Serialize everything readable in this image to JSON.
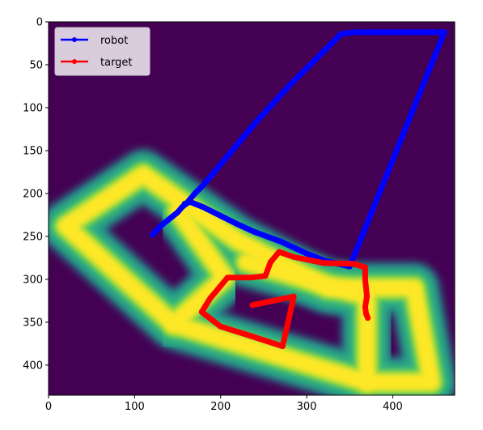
{
  "chart_data": {
    "type": "line",
    "background": "heatmap",
    "colormap": "viridis",
    "image_extent": {
      "x": [
        0,
        472
      ],
      "y": [
        0,
        435
      ]
    },
    "xlim": [
      0,
      472
    ],
    "ylim": [
      435,
      0
    ],
    "y_inverted": true,
    "grid": false,
    "legend_position": "upper-left",
    "xticks": [
      0,
      100,
      200,
      300,
      400
    ],
    "yticks": [
      0,
      50,
      100,
      150,
      200,
      250,
      300,
      350,
      400
    ],
    "xtick_labels": [
      "0",
      "100",
      "200",
      "300",
      "400"
    ],
    "ytick_labels": [
      "0",
      "50",
      "100",
      "150",
      "200",
      "250",
      "300",
      "350",
      "400"
    ],
    "heatmap_corridors": [
      [
        [
          110,
          178
        ],
        [
          20,
          238
        ],
        [
          145,
          352
        ],
        [
          370,
          420
        ],
        [
          445,
          420
        ],
        [
          425,
          310
        ],
        [
          325,
          310
        ],
        [
          220,
          255
        ],
        [
          110,
          178
        ]
      ],
      [
        [
          150,
          220
        ],
        [
          205,
          298
        ],
        [
          145,
          352
        ]
      ],
      [
        [
          230,
          280
        ],
        [
          370,
          320
        ],
        [
          370,
          420
        ]
      ]
    ],
    "series": [
      {
        "name": "robot",
        "color": "#0000ff",
        "marker": "circle",
        "x": [
          121,
          130,
          140,
          150,
          155,
          160,
          170,
          180,
          190,
          200,
          220,
          240,
          260,
          280,
          300,
          320,
          340,
          356,
          380,
          420,
          460,
          350,
          320,
          300,
          270,
          240,
          220,
          200,
          180,
          165,
          158
        ],
        "y": [
          248,
          238,
          230,
          222,
          216,
          212,
          200,
          190,
          178,
          166,
          142,
          118,
          96,
          74,
          54,
          34,
          14,
          12,
          12,
          12,
          12,
          285,
          278,
          270,
          256,
          245,
          236,
          226,
          216,
          210,
          212
        ]
      },
      {
        "name": "target",
        "color": "#ff0000",
        "marker": "circle",
        "x": [
          237,
          285,
          272,
          235,
          200,
          178,
          188,
          208,
          235,
          252,
          258,
          268,
          285,
          320,
          355,
          368,
          368,
          370,
          368,
          369,
          371
        ],
        "y": [
          330,
          320,
          378,
          366,
          355,
          338,
          322,
          298,
          298,
          296,
          280,
          268,
          274,
          281,
          282,
          286,
          300,
          320,
          332,
          340,
          345
        ]
      }
    ]
  }
}
